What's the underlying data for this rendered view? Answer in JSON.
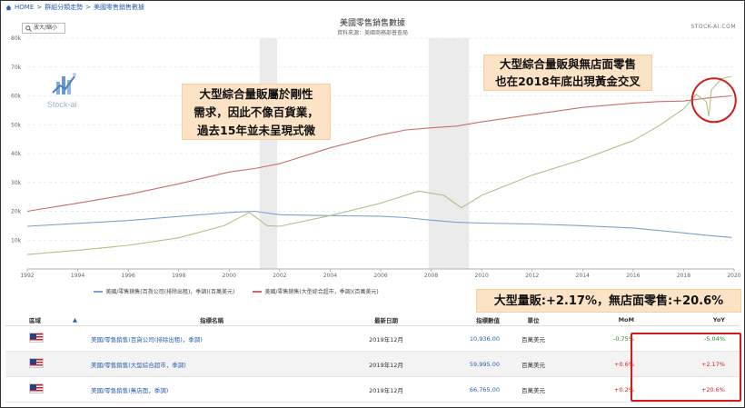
{
  "breadcrumb": [
    "HOME",
    "群組分類走勢",
    "美國零售銷售數據"
  ],
  "chart_title": "美國零售銷售數據",
  "chart_subtitle": "資料來源：美國商務部普查局",
  "brand": "STOCK-AI.COM",
  "zoom_label": "放大/縮小",
  "logo_text": "Stock-ai",
  "callouts": {
    "c1": [
      "大型綜合量販屬於剛性",
      "需求，因此不像百貨業，",
      "過去15年並未呈現式微"
    ],
    "c2": [
      "大型綜合量販與無店面零售",
      "也在2018年底出現黃金交叉"
    ],
    "c3": "大型量販:+2.17%，無店面零售:+20.6%"
  },
  "chart_data": {
    "type": "line",
    "y_ticks": [
      "10k",
      "20k",
      "30k",
      "40k",
      "50k",
      "60k",
      "70k",
      "80k"
    ],
    "x_ticks": [
      "1992",
      "1994",
      "1996",
      "1998",
      "2000",
      "2002",
      "2004",
      "2006",
      "2008",
      "2010",
      "2012",
      "2014",
      "2016",
      "2018",
      "2020"
    ],
    "xlim": [
      1992,
      2020
    ],
    "ylim": [
      0,
      80000
    ],
    "shaded_periods": [
      [
        2001.2,
        2001.9
      ],
      [
        2007.9,
        2009.5
      ]
    ],
    "series": [
      {
        "name": "美國/零售銷售(百貨公司(排除出租)，季調)(百萬美元)",
        "color": "#7f9fd0",
        "points": [
          [
            1992,
            14800
          ],
          [
            1994,
            15800
          ],
          [
            1996,
            16800
          ],
          [
            1998,
            18200
          ],
          [
            2000,
            19600
          ],
          [
            2001,
            20000
          ],
          [
            2002,
            18800
          ],
          [
            2004,
            18500
          ],
          [
            2006,
            18300
          ],
          [
            2007,
            17800
          ],
          [
            2008,
            16900
          ],
          [
            2009,
            16200
          ],
          [
            2010,
            15900
          ],
          [
            2012,
            15600
          ],
          [
            2014,
            15000
          ],
          [
            2016,
            14200
          ],
          [
            2018,
            12500
          ],
          [
            2019,
            11600
          ],
          [
            2019.9,
            10936
          ]
        ]
      },
      {
        "name": "美國/零售銷售(大型綜合超市，季調)(百萬美元)",
        "color": "#cc6b6b",
        "points": [
          [
            1992,
            20000
          ],
          [
            1994,
            22800
          ],
          [
            1996,
            25800
          ],
          [
            1998,
            29500
          ],
          [
            2000,
            33600
          ],
          [
            2001,
            34800
          ],
          [
            2002,
            36500
          ],
          [
            2004,
            42000
          ],
          [
            2006,
            46500
          ],
          [
            2007,
            48200
          ],
          [
            2008,
            48900
          ],
          [
            2009,
            49500
          ],
          [
            2010,
            51000
          ],
          [
            2012,
            53500
          ],
          [
            2014,
            56000
          ],
          [
            2016,
            57500
          ],
          [
            2017,
            58000
          ],
          [
            2018,
            58200
          ],
          [
            2019,
            59300
          ],
          [
            2019.9,
            59995
          ]
        ]
      },
      {
        "name": "美國/零售銷售(無店面，季調)(百萬美元)",
        "color": "#b5bf82",
        "points": [
          [
            1992,
            5000
          ],
          [
            1994,
            6500
          ],
          [
            1996,
            8200
          ],
          [
            1998,
            10800
          ],
          [
            1999.8,
            15000
          ],
          [
            2000.8,
            19600
          ],
          [
            2001.5,
            15000
          ],
          [
            2002,
            14800
          ],
          [
            2004,
            18500
          ],
          [
            2006,
            22800
          ],
          [
            2007.5,
            27000
          ],
          [
            2008.5,
            25500
          ],
          [
            2009.2,
            21200
          ],
          [
            2010,
            25500
          ],
          [
            2012,
            32500
          ],
          [
            2014,
            38000
          ],
          [
            2016,
            44500
          ],
          [
            2017,
            49500
          ],
          [
            2018,
            55500
          ],
          [
            2018.5,
            60500
          ],
          [
            2018.9,
            58000
          ],
          [
            2019,
            53000
          ],
          [
            2019.1,
            62000
          ],
          [
            2019.5,
            66000
          ],
          [
            2019.9,
            66765
          ]
        ]
      }
    ]
  },
  "legend": [
    "美國/零售銷售(百貨公司(排除出租)，季調)(百萬美元)",
    "美國/零售銷售(大型綜合超市，季調)(百萬美元)"
  ],
  "table": {
    "headers": {
      "region": "區域",
      "name": "指標名稱",
      "date": "最新日期",
      "value": "指標數值",
      "unit": "單位",
      "mom": "MoM",
      "yoy": "YoY"
    },
    "rows": [
      {
        "name": "美國/零售銷售(百貨公司(排除出租)，季調)",
        "date": "2019年12月",
        "value": "10,936.00",
        "unit": "百萬美元",
        "mom": "-0.75%",
        "yoy": "-5.04%"
      },
      {
        "name": "美國/零售銷售(大型綜合超市，季調)",
        "date": "2019年12月",
        "value": "59,995.00",
        "unit": "百萬美元",
        "mom": "+0.6%",
        "yoy": "+2.17%"
      },
      {
        "name": "美國/零售銷售(無店面，季調)",
        "date": "2019年12月",
        "value": "66,765.00",
        "unit": "百萬美元",
        "mom": "+0.2%",
        "yoy": "+20.6%"
      }
    ]
  }
}
